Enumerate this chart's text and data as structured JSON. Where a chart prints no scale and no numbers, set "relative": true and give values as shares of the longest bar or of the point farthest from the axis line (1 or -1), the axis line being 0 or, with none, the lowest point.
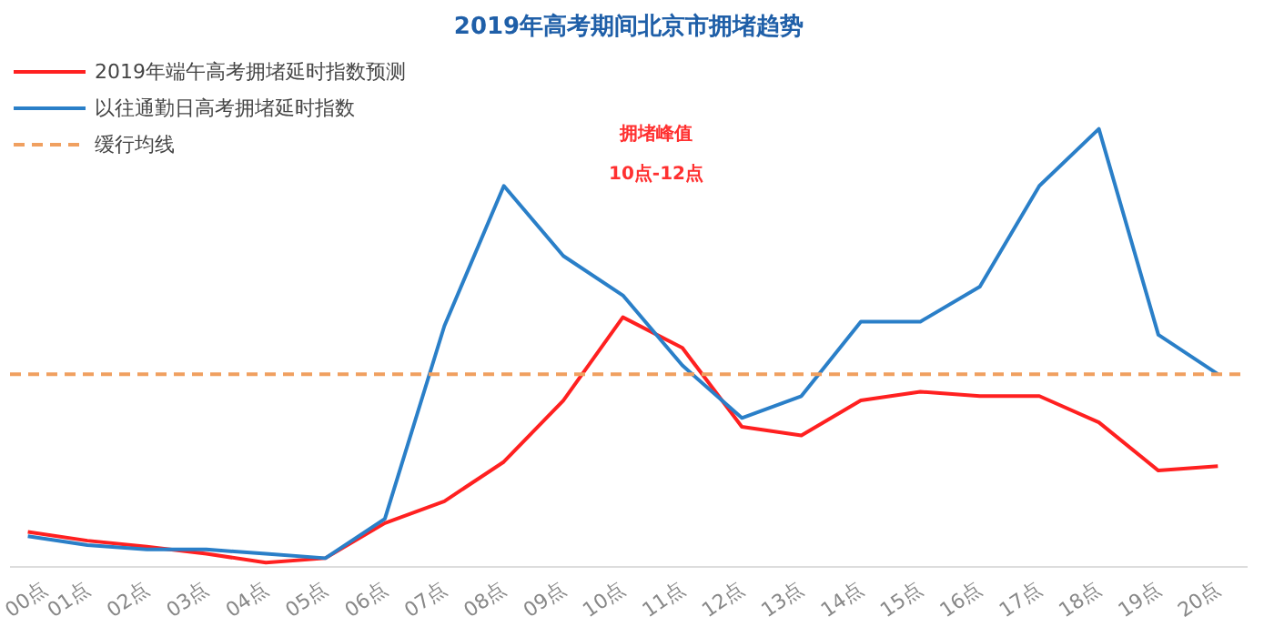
{
  "chart_data": {
    "type": "line",
    "title": "2019年高考期间北京市拥堵趋势",
    "relative": true,
    "categories": [
      "00点",
      "01点",
      "02点",
      "03点",
      "04点",
      "05点",
      "06点",
      "07点",
      "08点",
      "09点",
      "10点",
      "11点",
      "12点",
      "13点",
      "14点",
      "15点",
      "16点",
      "17点",
      "18点",
      "19点",
      "20点"
    ],
    "series": [
      {
        "name": "2019年端午高考拥堵延时指数预测",
        "color": "#ff2020",
        "values": [
          0.08,
          0.06,
          0.046,
          0.03,
          0.01,
          0.02,
          0.1,
          0.15,
          0.24,
          0.38,
          0.57,
          0.5,
          0.32,
          0.3,
          0.38,
          0.4,
          0.39,
          0.39,
          0.33,
          0.22,
          0.23
        ]
      },
      {
        "name": "以往通勤日高考拥堵延时指数",
        "color": "#2a7fc8",
        "values": [
          0.07,
          0.05,
          0.04,
          0.04,
          0.03,
          0.02,
          0.11,
          0.55,
          0.87,
          0.71,
          0.62,
          0.46,
          0.34,
          0.39,
          0.56,
          0.56,
          0.64,
          0.87,
          1.0,
          0.53,
          0.44
        ]
      }
    ],
    "ref_lines": [
      {
        "axis": "y",
        "value": 0.44,
        "label": "缓行均线",
        "color": "#f0a060",
        "line_style": "dashed"
      }
    ],
    "annotations": [
      "拥堵峰值",
      "10点-12点"
    ],
    "legend": "top left",
    "grid": false,
    "line_style": "solid",
    "marker": "none"
  }
}
